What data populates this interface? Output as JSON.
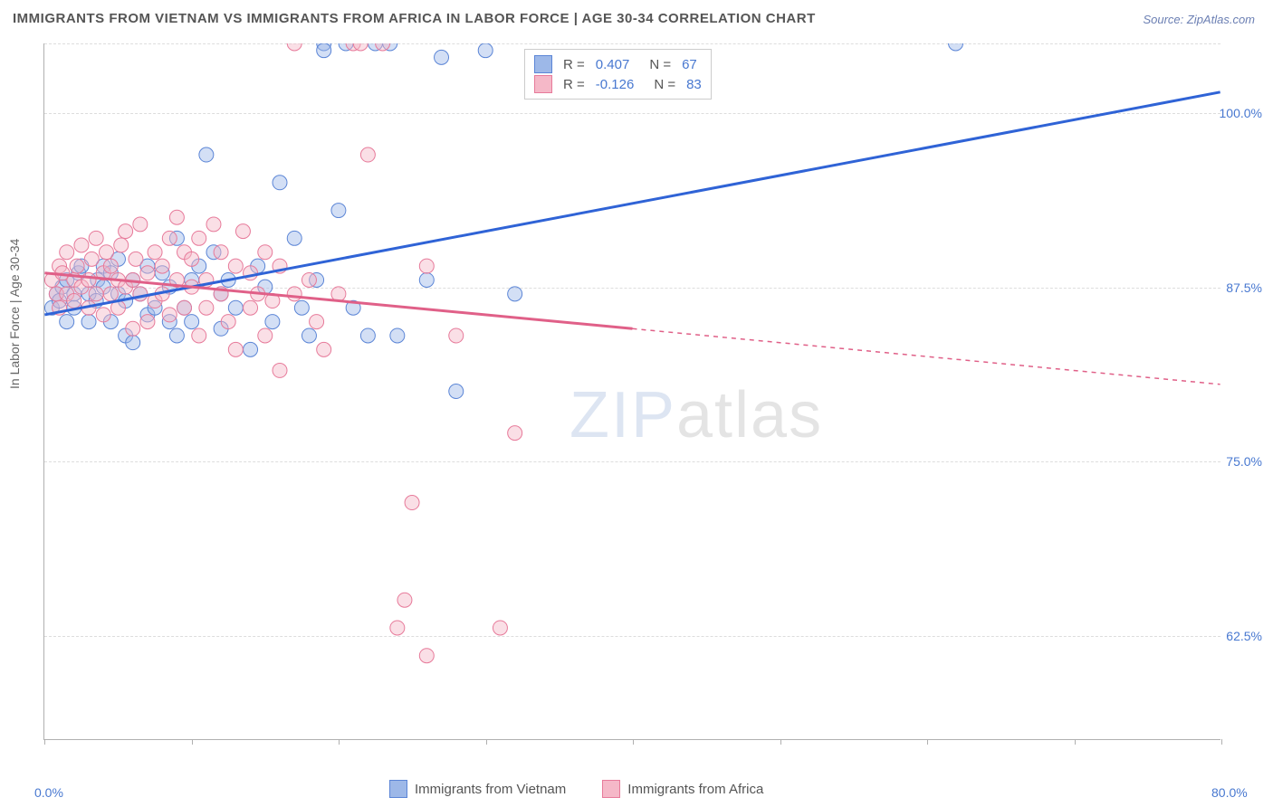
{
  "title": "IMMIGRANTS FROM VIETNAM VS IMMIGRANTS FROM AFRICA IN LABOR FORCE | AGE 30-34 CORRELATION CHART",
  "source": "Source: ZipAtlas.com",
  "y_axis_label": "In Labor Force | Age 30-34",
  "watermark_part1": "ZIP",
  "watermark_part2": "atlas",
  "chart": {
    "type": "scatter-with-regression",
    "xlim": [
      0,
      80
    ],
    "ylim": [
      55,
      105
    ],
    "x_ticks": [
      0,
      10,
      20,
      30,
      40,
      50,
      60,
      70,
      80
    ],
    "x_tick_labels": {
      "0": "0.0%",
      "80": "80.0%"
    },
    "y_gridlines": [
      62.5,
      75,
      87.5,
      100,
      105
    ],
    "y_tick_labels": {
      "62.5": "62.5%",
      "75": "75.0%",
      "87.5": "87.5%",
      "100": "100.0%"
    },
    "background_color": "#ffffff",
    "grid_color": "#dddddd",
    "axis_color": "#b0b0b0",
    "marker_radius": 8,
    "marker_opacity": 0.45,
    "line_width": 3,
    "series": [
      {
        "name": "Immigrants from Vietnam",
        "color_fill": "#9db8e8",
        "color_stroke": "#5b85d6",
        "line_color": "#2f63d6",
        "R": "0.407",
        "N": "67",
        "regression": {
          "x1": 0,
          "y1": 85.5,
          "x2": 80,
          "y2": 101.5,
          "solid_until_x": 80
        },
        "points": [
          [
            0.5,
            86
          ],
          [
            0.8,
            87
          ],
          [
            1,
            86.5
          ],
          [
            1.2,
            87.5
          ],
          [
            1.5,
            88
          ],
          [
            1.5,
            85
          ],
          [
            2,
            87
          ],
          [
            2,
            86
          ],
          [
            2.3,
            88.5
          ],
          [
            2.5,
            89
          ],
          [
            3,
            87
          ],
          [
            3,
            85
          ],
          [
            3.5,
            86.5
          ],
          [
            3.6,
            88
          ],
          [
            4,
            87.5
          ],
          [
            4,
            89
          ],
          [
            4.5,
            85
          ],
          [
            4.5,
            88.5
          ],
          [
            5,
            87
          ],
          [
            5,
            89.5
          ],
          [
            5.5,
            84
          ],
          [
            5.5,
            86.5
          ],
          [
            6,
            88
          ],
          [
            6,
            83.5
          ],
          [
            6.5,
            87
          ],
          [
            7,
            89
          ],
          [
            7,
            85.5
          ],
          [
            7.5,
            86
          ],
          [
            8,
            88.5
          ],
          [
            8.5,
            85
          ],
          [
            8.5,
            87.5
          ],
          [
            9,
            84
          ],
          [
            9,
            91
          ],
          [
            9.5,
            86
          ],
          [
            10,
            88
          ],
          [
            10,
            85
          ],
          [
            10.5,
            89
          ],
          [
            11,
            97
          ],
          [
            11.5,
            90
          ],
          [
            12,
            87
          ],
          [
            12,
            84.5
          ],
          [
            12.5,
            88
          ],
          [
            13,
            86
          ],
          [
            14,
            83
          ],
          [
            14.5,
            89
          ],
          [
            15,
            87.5
          ],
          [
            15.5,
            85
          ],
          [
            16,
            95
          ],
          [
            17,
            91
          ],
          [
            17.5,
            86
          ],
          [
            18,
            84
          ],
          [
            18.5,
            88
          ],
          [
            19,
            105
          ],
          [
            19,
            104.5
          ],
          [
            20,
            93
          ],
          [
            20.5,
            105
          ],
          [
            21,
            86
          ],
          [
            22,
            84
          ],
          [
            22.5,
            105
          ],
          [
            23.5,
            105
          ],
          [
            24,
            84
          ],
          [
            26,
            88
          ],
          [
            27,
            104
          ],
          [
            28,
            80
          ],
          [
            30,
            104.5
          ],
          [
            32,
            87
          ],
          [
            62,
            105
          ]
        ]
      },
      {
        "name": "Immigrants from Africa",
        "color_fill": "#f5b8c8",
        "color_stroke": "#e77a9a",
        "line_color": "#e06088",
        "R": "-0.126",
        "N": "83",
        "regression": {
          "x1": 0,
          "y1": 88.5,
          "x2": 80,
          "y2": 80.5,
          "solid_until_x": 40
        },
        "points": [
          [
            0.5,
            88
          ],
          [
            0.8,
            87
          ],
          [
            1,
            89
          ],
          [
            1,
            86
          ],
          [
            1.2,
            88.5
          ],
          [
            1.5,
            87
          ],
          [
            1.5,
            90
          ],
          [
            2,
            88
          ],
          [
            2,
            86.5
          ],
          [
            2.2,
            89
          ],
          [
            2.5,
            87.5
          ],
          [
            2.5,
            90.5
          ],
          [
            3,
            88
          ],
          [
            3,
            86
          ],
          [
            3.2,
            89.5
          ],
          [
            3.5,
            87
          ],
          [
            3.5,
            91
          ],
          [
            4,
            88.5
          ],
          [
            4,
            85.5
          ],
          [
            4.2,
            90
          ],
          [
            4.5,
            87
          ],
          [
            4.5,
            89
          ],
          [
            5,
            88
          ],
          [
            5,
            86
          ],
          [
            5.2,
            90.5
          ],
          [
            5.5,
            87.5
          ],
          [
            5.5,
            91.5
          ],
          [
            6,
            88
          ],
          [
            6,
            84.5
          ],
          [
            6.2,
            89.5
          ],
          [
            6.5,
            87
          ],
          [
            6.5,
            92
          ],
          [
            7,
            88.5
          ],
          [
            7,
            85
          ],
          [
            7.5,
            90
          ],
          [
            7.5,
            86.5
          ],
          [
            8,
            89
          ],
          [
            8,
            87
          ],
          [
            8.5,
            91
          ],
          [
            8.5,
            85.5
          ],
          [
            9,
            88
          ],
          [
            9,
            92.5
          ],
          [
            9.5,
            86
          ],
          [
            9.5,
            90
          ],
          [
            10,
            87.5
          ],
          [
            10,
            89.5
          ],
          [
            10.5,
            84
          ],
          [
            10.5,
            91
          ],
          [
            11,
            88
          ],
          [
            11,
            86
          ],
          [
            11.5,
            92
          ],
          [
            12,
            87
          ],
          [
            12,
            90
          ],
          [
            12.5,
            85
          ],
          [
            13,
            89
          ],
          [
            13,
            83
          ],
          [
            13.5,
            91.5
          ],
          [
            14,
            86
          ],
          [
            14,
            88.5
          ],
          [
            14.5,
            87
          ],
          [
            15,
            90
          ],
          [
            15,
            84
          ],
          [
            15.5,
            86.5
          ],
          [
            16,
            89
          ],
          [
            16,
            81.5
          ],
          [
            17,
            87
          ],
          [
            17,
            105
          ],
          [
            18,
            88
          ],
          [
            18.5,
            85
          ],
          [
            19,
            83
          ],
          [
            20,
            87
          ],
          [
            21,
            105
          ],
          [
            21.5,
            105
          ],
          [
            22,
            97
          ],
          [
            23,
            105
          ],
          [
            24,
            63
          ],
          [
            24.5,
            65
          ],
          [
            25,
            72
          ],
          [
            26,
            61
          ],
          [
            26,
            89
          ],
          [
            28,
            84
          ],
          [
            31,
            63
          ],
          [
            32,
            77
          ]
        ]
      }
    ]
  },
  "legend_top": {
    "R_label": "R =",
    "N_label": "N ="
  },
  "legend_bottom": {
    "series1": "Immigrants from Vietnam",
    "series2": "Immigrants from Africa"
  }
}
